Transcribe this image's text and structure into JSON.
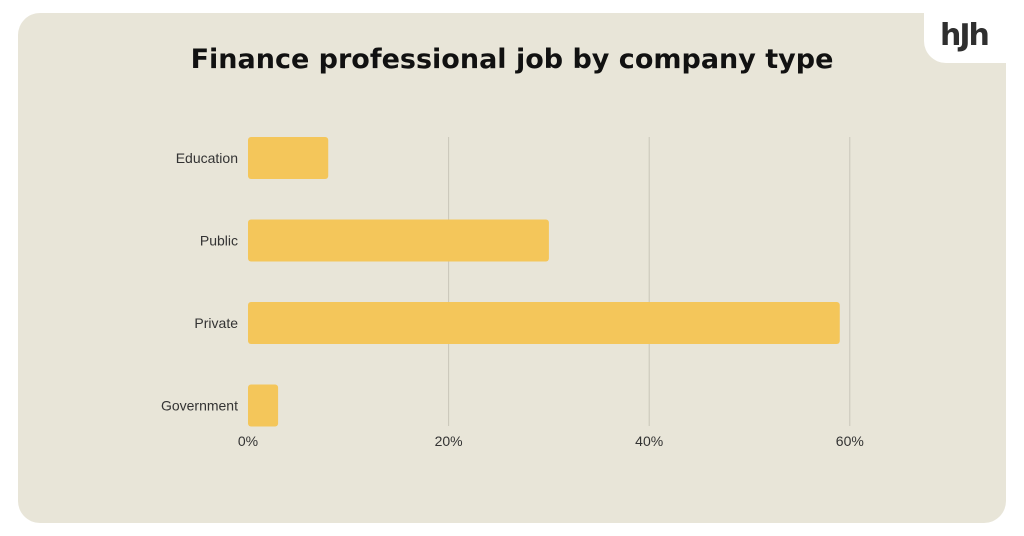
{
  "logo_text": "hJh",
  "chart_data": {
    "type": "bar",
    "orientation": "horizontal",
    "title": "Finance professional job by company type",
    "categories": [
      "Education",
      "Public",
      "Private",
      "Government"
    ],
    "values": [
      8,
      30,
      59,
      3
    ],
    "x_ticks": [
      "0%",
      "20%",
      "40%",
      "60%"
    ],
    "x_tick_values": [
      0,
      20,
      40,
      60
    ],
    "xlim": [
      0,
      60
    ],
    "xlabel": "",
    "ylabel": "",
    "grid": true,
    "bar_color": "#f4c65a",
    "grid_color": "#c9c6ba",
    "background_color": "#e8e5d8"
  }
}
